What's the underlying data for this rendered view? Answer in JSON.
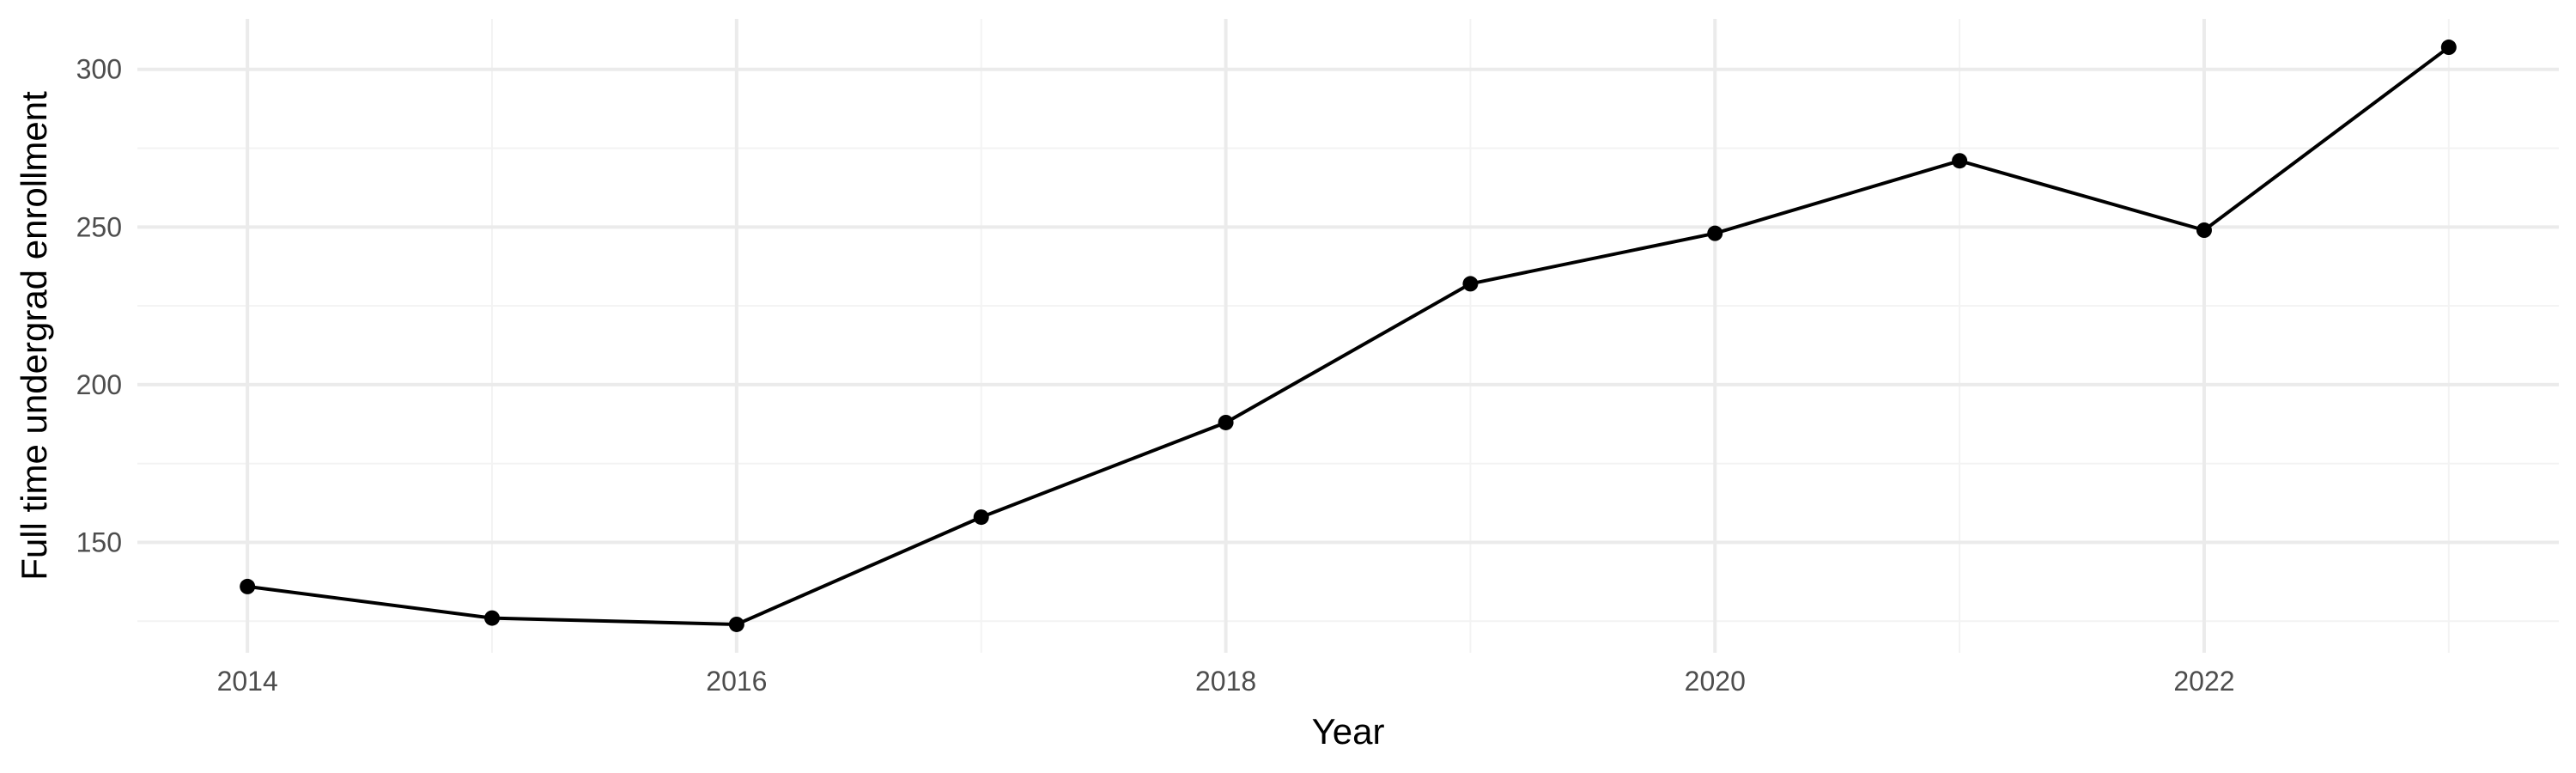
{
  "chart_data": {
    "type": "line",
    "title": "",
    "xlabel": "Year",
    "ylabel": "Full time undergrad enrollment",
    "x": [
      2014,
      2015,
      2016,
      2017,
      2018,
      2019,
      2020,
      2021,
      2022,
      2023
    ],
    "series": [
      {
        "values": [
          136,
          126,
          124,
          158,
          188,
          232,
          248,
          271,
          249,
          307
        ]
      }
    ],
    "xlim": [
      2013.55,
      2023.45
    ],
    "ylim": [
      115,
      316
    ],
    "x_ticks": [
      2014,
      2016,
      2018,
      2020,
      2022
    ],
    "x_tick_labels": [
      "2014",
      "2016",
      "2018",
      "2020",
      "2022"
    ],
    "y_ticks": [
      150,
      200,
      250,
      300
    ],
    "y_tick_labels": [
      "150",
      "200",
      "250",
      "300"
    ],
    "grid": true,
    "legend": "none",
    "colors": {
      "line": "#000000",
      "point": "#000000",
      "grid": "#ebebeb",
      "background": "#ffffff"
    }
  }
}
